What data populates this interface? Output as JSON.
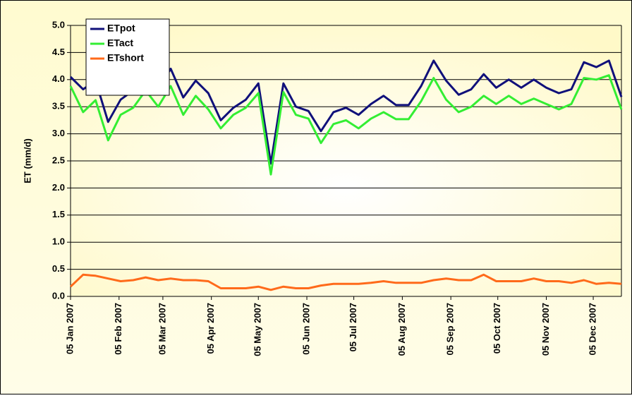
{
  "chart_data": {
    "type": "line",
    "y_label": "ET (mm/d)",
    "x": [
      "2007-01-05",
      "2007-01-13",
      "2007-01-21",
      "2007-01-29",
      "2007-02-06",
      "2007-02-14",
      "2007-02-22",
      "2007-03-02",
      "2007-03-10",
      "2007-03-18",
      "2007-03-26",
      "2007-04-03",
      "2007-04-11",
      "2007-04-19",
      "2007-04-27",
      "2007-05-05",
      "2007-05-13",
      "2007-05-21",
      "2007-05-29",
      "2007-06-06",
      "2007-06-14",
      "2007-06-22",
      "2007-06-30",
      "2007-07-08",
      "2007-07-16",
      "2007-07-24",
      "2007-08-01",
      "2007-08-09",
      "2007-08-17",
      "2007-08-25",
      "2007-09-02",
      "2007-09-10",
      "2007-09-18",
      "2007-09-26",
      "2007-10-04",
      "2007-10-12",
      "2007-10-20",
      "2007-10-28",
      "2007-11-05",
      "2007-11-13",
      "2007-11-21",
      "2007-11-29",
      "2007-12-07",
      "2007-12-15",
      "2007-12-23"
    ],
    "series": [
      {
        "name": "ETpot",
        "color": "#10107a",
        "values": [
          4.05,
          3.82,
          3.98,
          3.22,
          3.63,
          3.8,
          4.15,
          3.82,
          4.2,
          3.67,
          3.98,
          3.75,
          3.25,
          3.48,
          3.63,
          3.93,
          2.45,
          3.93,
          3.5,
          3.42,
          3.05,
          3.4,
          3.48,
          3.35,
          3.55,
          3.7,
          3.53,
          3.53,
          3.88,
          4.35,
          3.98,
          3.72,
          3.82,
          4.1,
          3.85,
          4.0,
          3.85,
          4.0,
          3.85,
          3.75,
          3.82,
          4.32,
          4.23,
          4.35,
          3.68
        ]
      },
      {
        "name": "ETact",
        "color": "#33ee33",
        "values": [
          3.88,
          3.4,
          3.62,
          2.88,
          3.35,
          3.48,
          3.8,
          3.5,
          3.88,
          3.35,
          3.7,
          3.45,
          3.1,
          3.35,
          3.48,
          3.75,
          2.25,
          3.77,
          3.35,
          3.28,
          2.83,
          3.18,
          3.25,
          3.1,
          3.28,
          3.4,
          3.27,
          3.27,
          3.6,
          4.03,
          3.63,
          3.4,
          3.5,
          3.7,
          3.55,
          3.7,
          3.55,
          3.65,
          3.55,
          3.45,
          3.55,
          4.03,
          4.0,
          4.08,
          3.45
        ]
      },
      {
        "name": "ETshort",
        "color": "#ff6a1a",
        "values": [
          0.18,
          0.4,
          0.38,
          0.33,
          0.28,
          0.3,
          0.35,
          0.3,
          0.33,
          0.3,
          0.3,
          0.28,
          0.15,
          0.15,
          0.15,
          0.18,
          0.12,
          0.18,
          0.15,
          0.15,
          0.2,
          0.23,
          0.23,
          0.23,
          0.25,
          0.28,
          0.25,
          0.25,
          0.25,
          0.3,
          0.33,
          0.3,
          0.3,
          0.4,
          0.28,
          0.28,
          0.28,
          0.33,
          0.28,
          0.28,
          0.25,
          0.3,
          0.23,
          0.25,
          0.23
        ]
      }
    ],
    "xlim": [
      "2007-01-05",
      "2007-12-23"
    ],
    "xticks": [
      {
        "value": "2007-01-05",
        "label": "05 Jan 2007"
      },
      {
        "value": "2007-02-05",
        "label": "05 Feb 2007"
      },
      {
        "value": "2007-03-05",
        "label": "05 Mar 2007"
      },
      {
        "value": "2007-04-05",
        "label": "05 Apr 2007"
      },
      {
        "value": "2007-05-05",
        "label": "05 May 2007"
      },
      {
        "value": "2007-06-05",
        "label": "05 Jun 2007"
      },
      {
        "value": "2007-07-05",
        "label": "05 Jul 2007"
      },
      {
        "value": "2007-08-05",
        "label": "05 Aug 2007"
      },
      {
        "value": "2007-09-05",
        "label": "05 Sep 2007"
      },
      {
        "value": "2007-10-05",
        "label": "05 Oct 2007"
      },
      {
        "value": "2007-11-05",
        "label": "05 Nov 2007"
      },
      {
        "value": "2007-12-05",
        "label": "05 Dec 2007"
      }
    ],
    "ylim": [
      0,
      5
    ],
    "yticks": [
      {
        "value": 0,
        "label": "0.0"
      },
      {
        "value": 0.5,
        "label": "0.5"
      },
      {
        "value": 1,
        "label": "1.0"
      },
      {
        "value": 1.5,
        "label": "1.5"
      },
      {
        "value": 2,
        "label": "2.0"
      },
      {
        "value": 2.5,
        "label": "2.5"
      },
      {
        "value": 3,
        "label": "3.0"
      },
      {
        "value": 3.5,
        "label": "3.5"
      },
      {
        "value": 4,
        "label": "4.0"
      },
      {
        "value": 4.5,
        "label": "4.5"
      },
      {
        "value": 5,
        "label": "5.0"
      }
    ],
    "grid": true,
    "legend": "upper left"
  }
}
